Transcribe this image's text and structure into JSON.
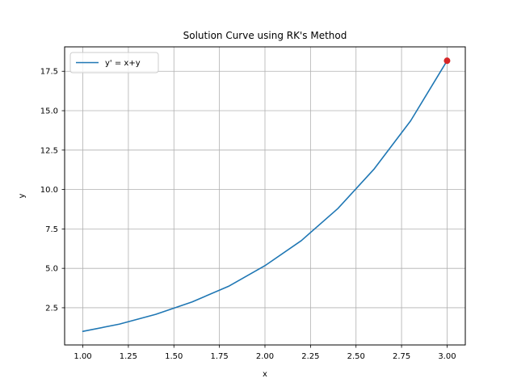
{
  "chart_data": {
    "type": "line",
    "title": "Solution Curve using RK's Method",
    "xlabel": "x",
    "ylabel": "y",
    "xlim": [
      0.9,
      3.1
    ],
    "ylim": [
      0.14,
      19.05
    ],
    "grid": true,
    "legend_placement": "upper-left",
    "xticks": [
      1.0,
      1.25,
      1.5,
      1.75,
      2.0,
      2.25,
      2.5,
      2.75,
      3.0
    ],
    "xtick_labels": [
      "1.00",
      "1.25",
      "1.50",
      "1.75",
      "2.00",
      "2.25",
      "2.50",
      "2.75",
      "3.00"
    ],
    "yticks": [
      2.5,
      5.0,
      7.5,
      10.0,
      12.5,
      15.0,
      17.5
    ],
    "ytick_labels": [
      "2.5",
      "5.0",
      "7.5",
      "10.0",
      "12.5",
      "15.0",
      "17.5"
    ],
    "series": [
      {
        "name": "y' = x+y",
        "color": "#1f77b4",
        "x": [
          1.0,
          1.2,
          1.4,
          1.6,
          1.8,
          2.0,
          2.2,
          2.4,
          2.6,
          2.8,
          3.0
        ],
        "y": [
          1.0,
          1.46,
          2.08,
          2.87,
          3.86,
          5.17,
          6.76,
          8.79,
          11.31,
          14.36,
          18.17
        ]
      }
    ],
    "highlight_point": {
      "x": 3.0,
      "y": 18.17,
      "color": "#d62728"
    }
  }
}
